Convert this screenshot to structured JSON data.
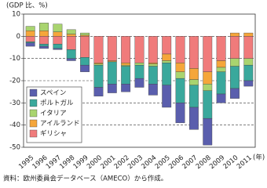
{
  "chart_data": {
    "type": "bar",
    "stacked": true,
    "y_axis_label": "(GDP 比、%)",
    "x_axis_label": "(年)",
    "source": "資料：欧州委員会データベース（AMECO）から作成。",
    "categories": [
      "1995",
      "1996",
      "1997",
      "1998",
      "1999",
      "2000",
      "2001",
      "2002",
      "2003",
      "2004",
      "2005",
      "2006",
      "2007",
      "2008",
      "2009",
      "2010",
      "2011"
    ],
    "series": [
      {
        "name": "ギリシャ",
        "color": "#f07b7b",
        "values": [
          -2.5,
          -3.5,
          -3.5,
          -6,
          -9.5,
          -12,
          -11,
          -12,
          -12,
          -12,
          -8,
          -12,
          -14.5,
          -16,
          -11,
          -10,
          -10
        ]
      },
      {
        "name": "アイルランド",
        "color": "#f5a63a",
        "values": [
          2.5,
          2.5,
          2,
          1,
          0.5,
          -0.5,
          -0.5,
          -1,
          0,
          -0.5,
          -3,
          -4,
          -5,
          -5.5,
          -3,
          1.5,
          1.5
        ]
      },
      {
        "name": "イタリア",
        "color": "#a9d46f",
        "values": [
          2,
          3.5,
          3.5,
          2,
          1,
          -0.5,
          0,
          -0.5,
          -1,
          -1,
          -1,
          -3,
          -2.5,
          -3,
          -2,
          -3.5,
          -3
        ]
      },
      {
        "name": "ポルトガル",
        "color": "#3aa89c",
        "values": [
          -0.5,
          -1,
          -2,
          -4,
          -3.5,
          -10,
          -10,
          -8,
          -6,
          -8,
          -10,
          -11,
          -10,
          -12.5,
          -10,
          -10,
          -7
        ]
      },
      {
        "name": "スペイン",
        "color": "#5a5ead",
        "values": [
          -1.5,
          -1,
          -0.5,
          -1,
          -3,
          -4,
          -4,
          -3.5,
          -4,
          -5,
          -10,
          -9,
          -10,
          -12,
          -4,
          -4.5,
          -2.5
        ]
      }
    ],
    "ylim": [
      -50,
      10
    ],
    "yticks": [
      -50,
      -40,
      -30,
      -20,
      -10,
      0,
      10
    ],
    "grid": true,
    "legend": "lower-left"
  }
}
